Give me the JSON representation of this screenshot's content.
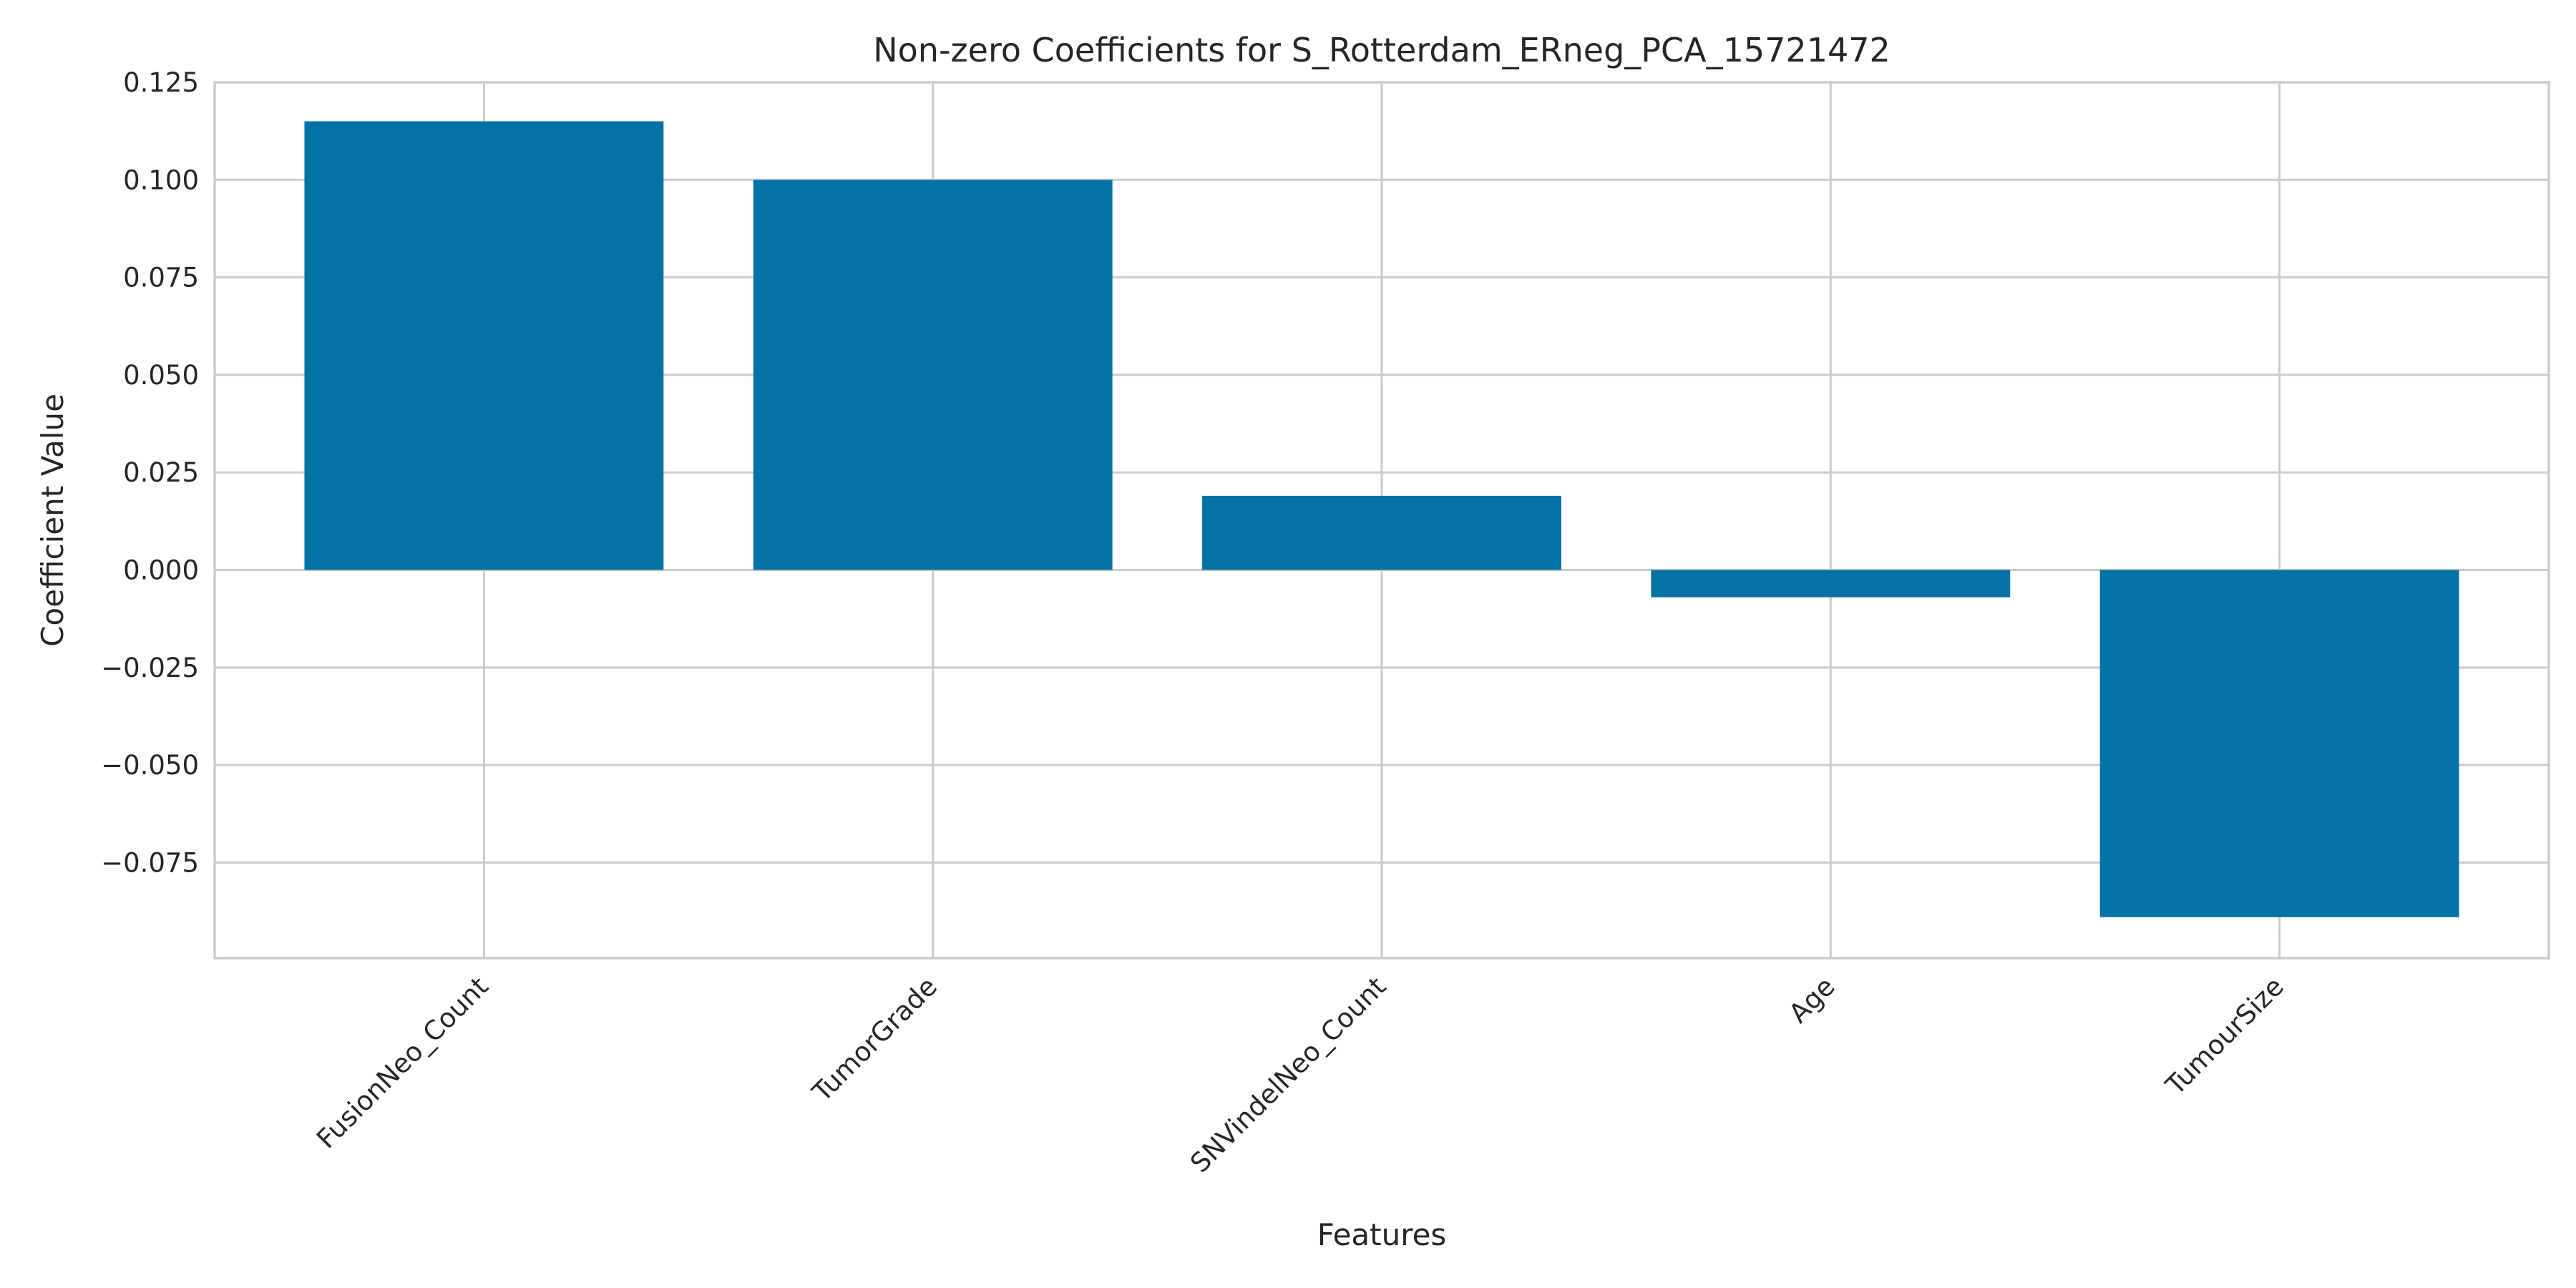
{
  "chart_data": {
    "type": "bar",
    "title": "Non-zero Coefficients for S_Rotterdam_ERneg_PCA_15721472",
    "xlabel": "Features",
    "ylabel": "Coefficient Value",
    "categories": [
      "FusionNeo_Count",
      "TumorGrade",
      "SNVindelNeo_Count",
      "Age",
      "TumourSize"
    ],
    "values": [
      0.115,
      0.1,
      0.019,
      -0.007,
      -0.089
    ],
    "ylim": [
      -0.0995,
      0.125
    ],
    "yticks": [
      0.125,
      0.1,
      0.075,
      0.05,
      0.025,
      0.0,
      -0.025,
      -0.05,
      -0.075
    ],
    "ytick_labels": [
      "0.125",
      "0.100",
      "0.075",
      "0.050",
      "0.025",
      "0.000",
      "−0.025",
      "−0.050",
      "−0.075"
    ],
    "grid": true,
    "bar_color": "#0472a5",
    "grid_color": "#cccccc",
    "text_color": "#262626"
  }
}
